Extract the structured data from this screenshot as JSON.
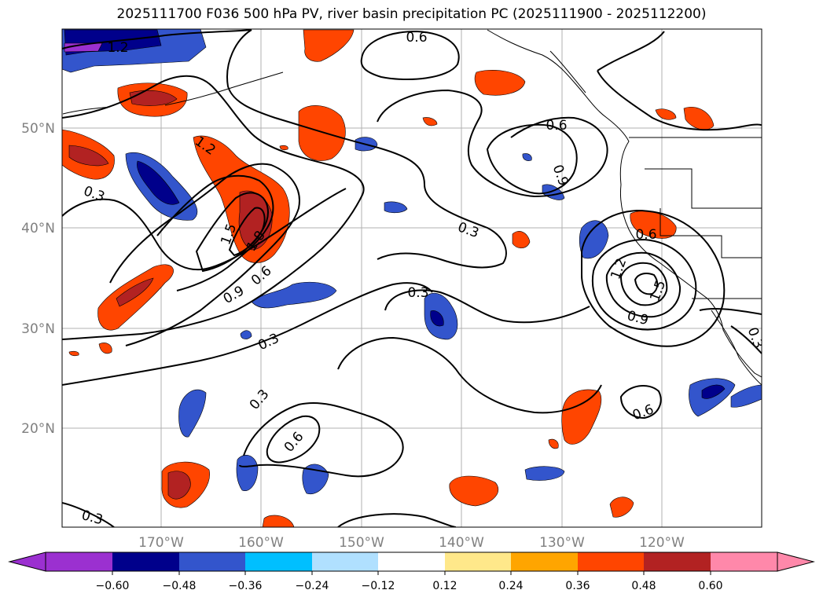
{
  "title": "2025111700 F036 500 hPa PV, river basin precipitation PC (2025111900 - 2025112200)",
  "lat_labels": [
    "50°N",
    "40°N",
    "30°N",
    "20°N"
  ],
  "lon_labels": [
    "170°W",
    "160°W",
    "150°W",
    "140°W",
    "130°W",
    "120°W"
  ],
  "contour_labels": [
    "0.6",
    "0.6",
    "0.9",
    "1.2",
    "0.3",
    "1.5",
    "1.8",
    "0.6",
    "0.9",
    "0.3",
    "0.3",
    "0.3",
    "0.3",
    "0.6",
    "0.3",
    "0.6",
    "1.2",
    "1.5",
    "0.9",
    "0.6",
    "0.3",
    "1.2"
  ],
  "colorbar": {
    "ticks": [
      "−0.60",
      "−0.48",
      "−0.36",
      "−0.24",
      "−0.12",
      "0.12",
      "0.24",
      "0.36",
      "0.48",
      "0.60"
    ],
    "colors": [
      "#9b30d0",
      "#00008b",
      "#3355cc",
      "#00bfff",
      "#b0e0ff",
      "#ffffff",
      "#ffe88a",
      "#ffa500",
      "#ff4500",
      "#b22222",
      "#ff88aa",
      "#ff88aa"
    ]
  },
  "palette": {
    "neg_deep": "#00008b",
    "neg_mid": "#3355cc",
    "neg_light": "#00bfff",
    "pos_light": "#ffe88a",
    "pos_mid": "#ff4500",
    "pos_deep": "#b22222",
    "purple": "#9b30d0"
  }
}
